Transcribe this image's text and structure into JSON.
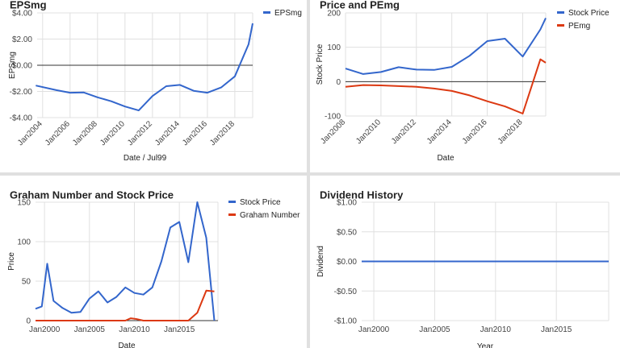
{
  "colors": {
    "blue": "#3366cc",
    "red": "#dc3912",
    "grid": "#e0e0e0",
    "zero": "#333333"
  },
  "chart_data": [
    {
      "type": "line",
      "title": "EPSmg",
      "xlabel": "Date / Jul99",
      "ylabel": "EPSmg",
      "x_ticks": [
        "Jan2004",
        "Jan2006",
        "Jan2008",
        "Jan2010",
        "Jan2012",
        "Jan2014",
        "Jan2016",
        "Jan2018"
      ],
      "y_ticks": [
        "$4.00",
        "$2.00",
        "$0.00",
        "-$2.00",
        "-$4.00"
      ],
      "xlim": [
        2003.6,
        2019.3
      ],
      "ylim": [
        -4,
        4
      ],
      "series": [
        {
          "name": "EPSmg",
          "color": "#3366cc",
          "x": [
            2003.5,
            2005,
            2006,
            2007,
            2008,
            2009,
            2010,
            2011,
            2012,
            2013,
            2014,
            2015,
            2016,
            2017,
            2018,
            2019,
            2019.3
          ],
          "y": [
            -1.55,
            -1.9,
            -2.1,
            -2.08,
            -2.45,
            -2.75,
            -3.15,
            -3.45,
            -2.35,
            -1.6,
            -1.5,
            -1.95,
            -2.1,
            -1.7,
            -0.85,
            1.6,
            3.2
          ]
        }
      ]
    },
    {
      "type": "line",
      "title": "Price and PEmg",
      "xlabel": "Date",
      "ylabel": "Stock Price",
      "x_ticks": [
        "Jan2008",
        "Jan2010",
        "Jan2012",
        "Jan2014",
        "Jan2016",
        "Jan2018"
      ],
      "y_ticks": [
        "200",
        "100",
        "0",
        "-100"
      ],
      "xlim": [
        2008,
        2019.3
      ],
      "ylim": [
        -100,
        200
      ],
      "series": [
        {
          "name": "Stock Price",
          "color": "#3366cc",
          "x": [
            2008,
            2009,
            2010,
            2011,
            2012,
            2013,
            2014,
            2015,
            2016,
            2017,
            2018,
            2019,
            2019.3
          ],
          "y": [
            38,
            22,
            28,
            42,
            35,
            34,
            43,
            75,
            118,
            125,
            73,
            152,
            185
          ]
        },
        {
          "name": "PEmg",
          "color": "#dc3912",
          "x": [
            2008,
            2009,
            2010,
            2011,
            2012,
            2013,
            2014,
            2015,
            2016,
            2017,
            2018,
            2019,
            2019.3
          ],
          "y": [
            -15,
            -10,
            -11,
            -13,
            -15,
            -20,
            -27,
            -40,
            -57,
            -72,
            -93,
            65,
            55
          ]
        }
      ]
    },
    {
      "type": "line",
      "title": "Graham Number and Stock Price",
      "xlabel": "Date",
      "ylabel": "Price",
      "x_ticks": [
        "Jan2000",
        "Jan2005",
        "Jan2010",
        "Jan2015"
      ],
      "y_ticks": [
        "150",
        "100",
        "50",
        "0"
      ],
      "xlim": [
        1999,
        2019.3
      ],
      "ylim": [
        0,
        150
      ],
      "series": [
        {
          "name": "Stock Price",
          "color": "#3366cc",
          "x": [
            1999,
            1999.7,
            2000.3,
            2001,
            2002,
            2003,
            2004,
            2005,
            2006,
            2007,
            2008,
            2009,
            2010,
            2011,
            2012,
            2013,
            2014,
            2015,
            2016,
            2017,
            2018,
            2018.9
          ],
          "y": [
            15,
            18,
            72,
            25,
            16,
            10,
            11,
            28,
            37,
            23,
            30,
            42,
            35,
            33,
            42,
            75,
            118,
            125,
            74,
            150,
            105,
            0
          ]
        },
        {
          "name": "Graham Number",
          "color": "#dc3912",
          "x": [
            1999,
            2009,
            2009.6,
            2010.2,
            2011,
            2016,
            2017,
            2018,
            2018.9
          ],
          "y": [
            0,
            0,
            3,
            2,
            0,
            0,
            10,
            38,
            37
          ]
        }
      ]
    },
    {
      "type": "line",
      "title": "Dividend History",
      "xlabel": "Year",
      "ylabel": "Dividend",
      "x_ticks": [
        "Jan2000",
        "Jan2005",
        "Jan2010",
        "Jan2015"
      ],
      "y_ticks": [
        "$1.00",
        "$0.50",
        "$0.00",
        "-$0.50",
        "-$1.00"
      ],
      "xlim": [
        1999,
        2019.3
      ],
      "ylim": [
        -1,
        1
      ],
      "series": [
        {
          "color": "#3366cc",
          "x": [
            1999,
            2019.3
          ],
          "y": [
            0,
            0
          ]
        }
      ]
    }
  ]
}
